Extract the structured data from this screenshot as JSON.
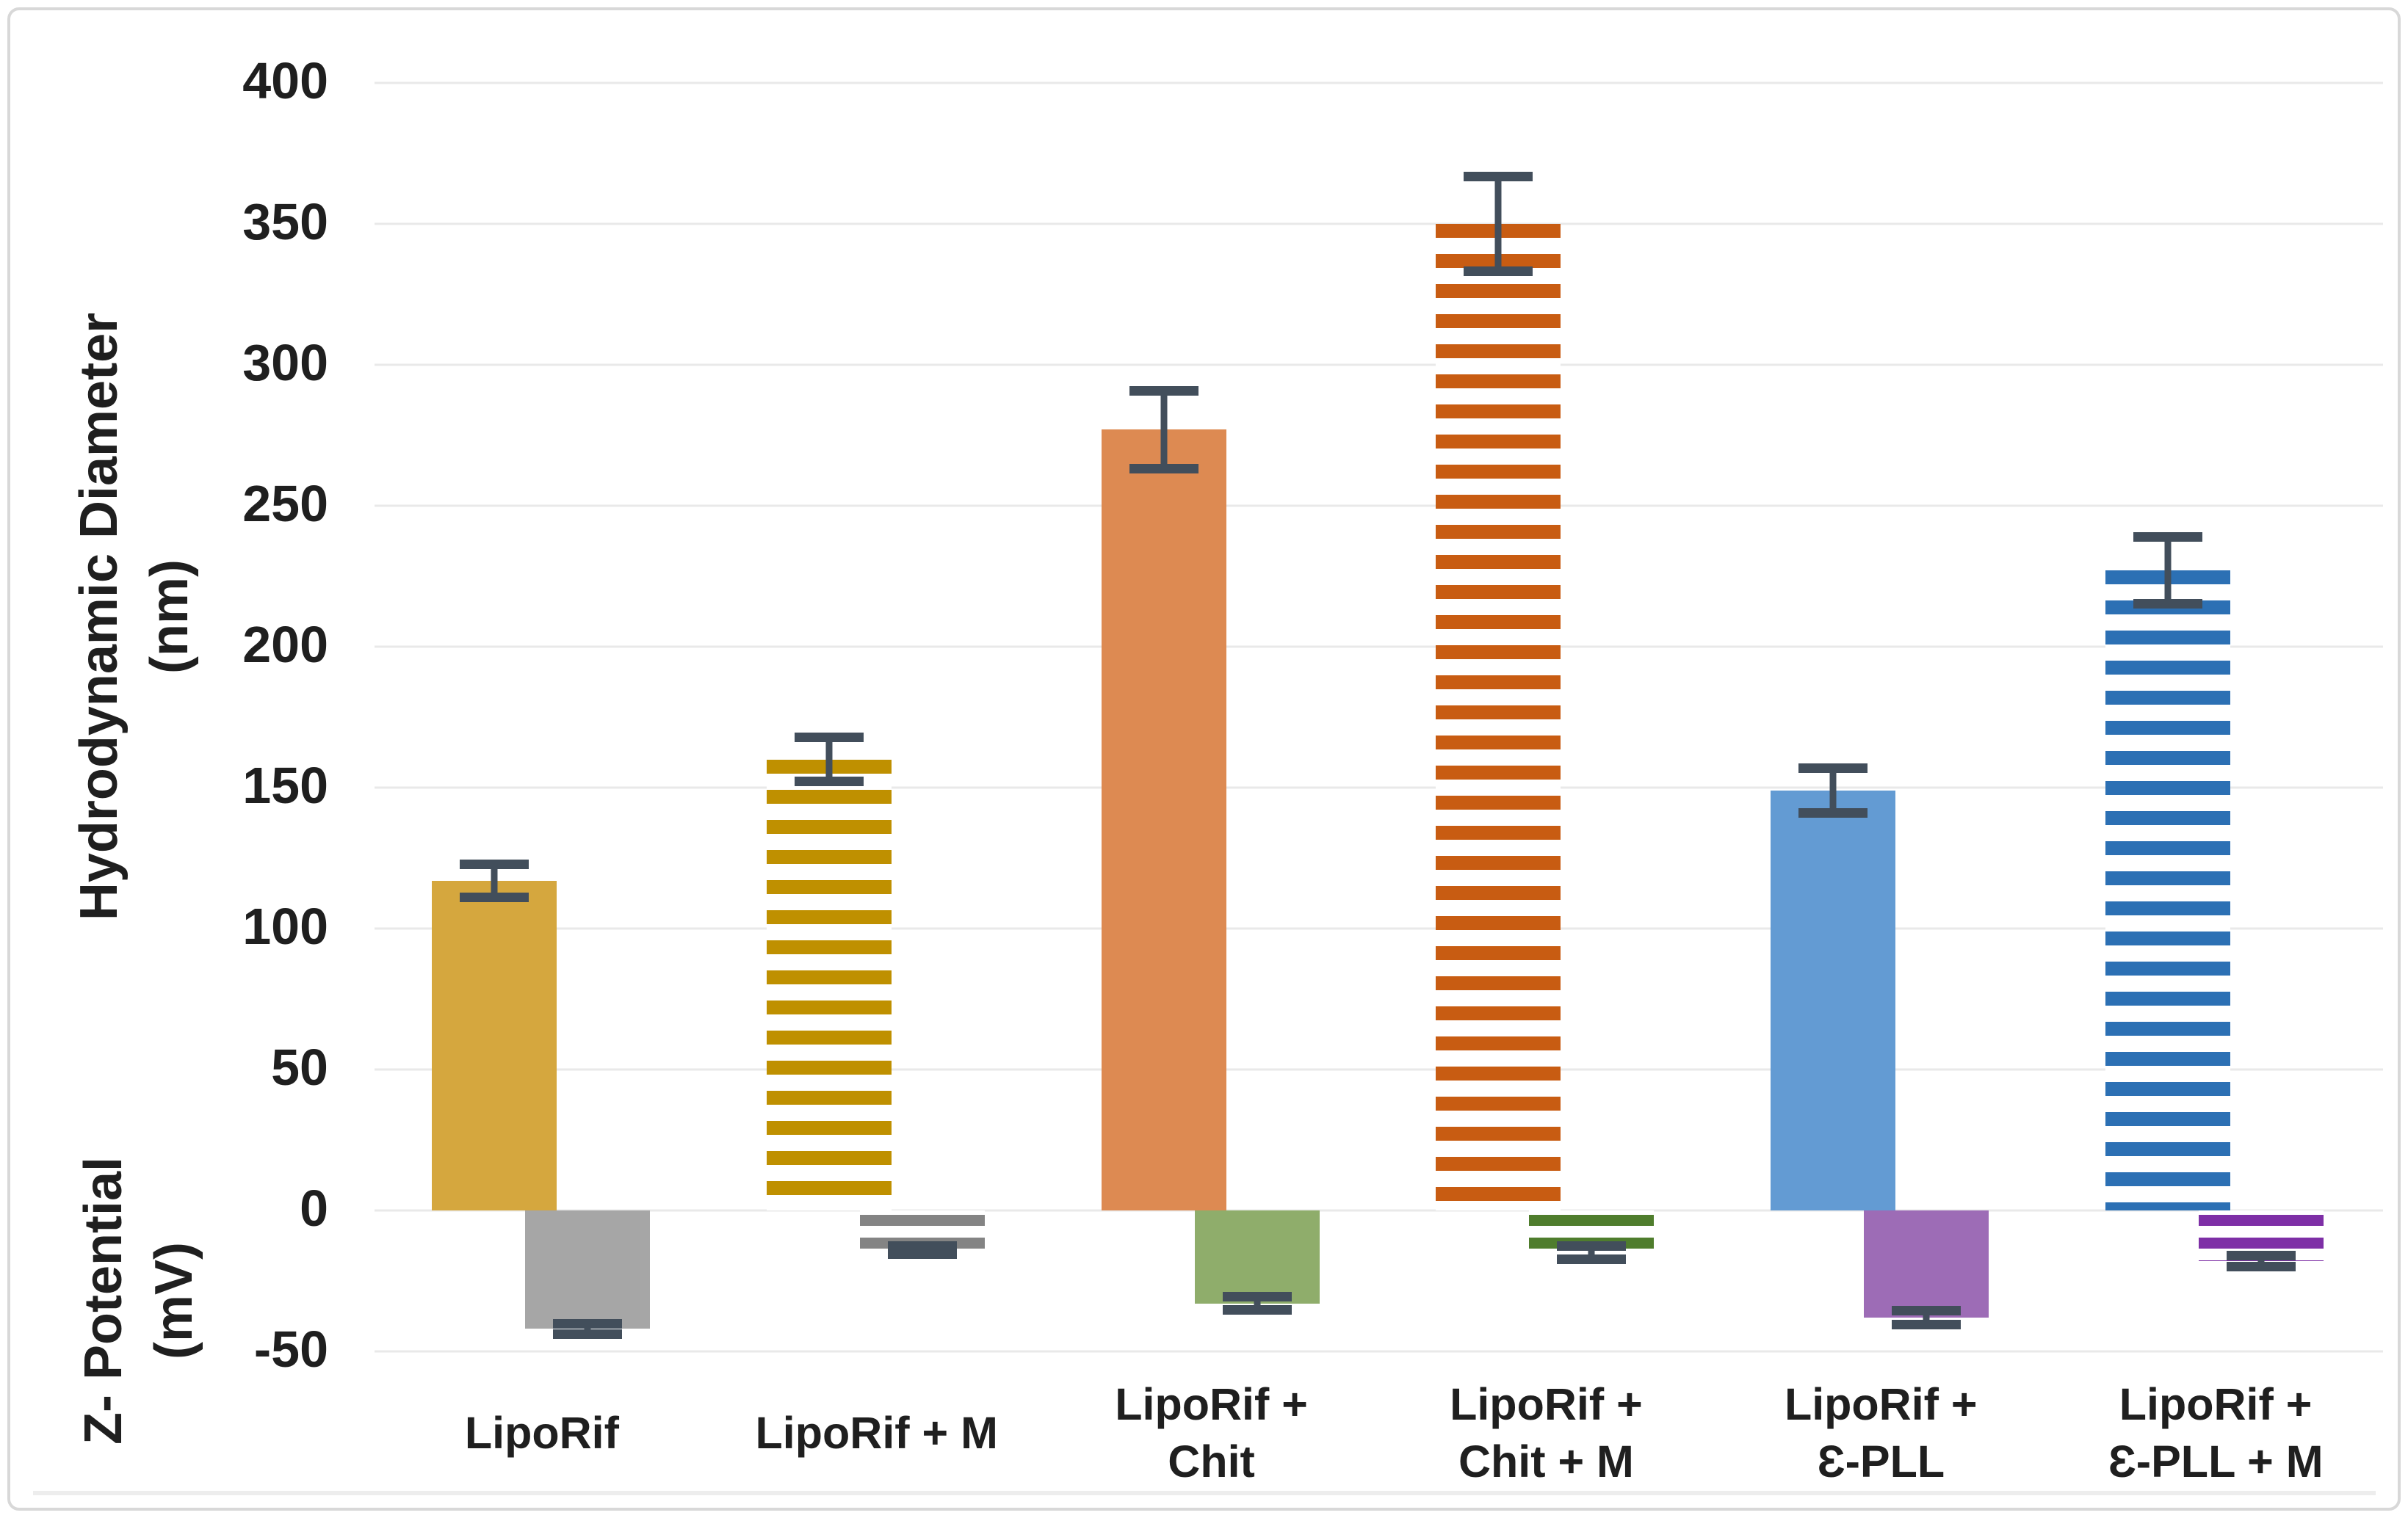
{
  "chart_data": {
    "type": "bar",
    "title": "",
    "categories": [
      "LipoRif",
      "LipoRif + M",
      "LipoRif + Chit",
      "LipoRif + Chit + M",
      "LipoRif + Ɛ-PLL",
      "LipoRif + Ɛ-PLL + M"
    ],
    "category_label_lines": [
      [
        "LipoRif"
      ],
      [
        "LipoRif + M"
      ],
      [
        "LipoRif +",
        "Chit"
      ],
      [
        "LipoRif +",
        "Chit + M"
      ],
      [
        "LipoRif +",
        "Ɛ-PLL"
      ],
      [
        "LipoRif +",
        "Ɛ-PLL + M"
      ]
    ],
    "series": [
      {
        "name": "Hydrodynamic Diameter (nm)",
        "values": [
          117,
          160,
          277,
          350,
          149,
          227
        ],
        "errors": [
          6,
          8,
          14,
          17,
          8,
          12
        ],
        "colors": [
          "#d5a73e",
          "#bf9000",
          "#dd8a52",
          "#c85c12",
          "#639bd3",
          "#2c70b4"
        ],
        "patterns": [
          "solid",
          "striped",
          "solid",
          "striped",
          "solid",
          "striped"
        ]
      },
      {
        "name": "Ζ- Potential (mV)",
        "values": [
          -42,
          -14,
          -33,
          -15,
          -38,
          -18
        ],
        "errors": [
          2,
          1.5,
          2.5,
          2.5,
          2.5,
          2
        ],
        "colors": [
          "#a6a6a6",
          "#848484",
          "#8fad6b",
          "#4f7d2d",
          "#9d6cb6",
          "#7e2fa6"
        ],
        "patterns": [
          "solid",
          "striped",
          "solid",
          "striped",
          "solid",
          "striped"
        ]
      }
    ],
    "ylabel_top_lines": [
      "Hydrodynamic Diameter",
      "(nm)"
    ],
    "ylabel_bottom_lines": [
      "Ζ- Potential",
      "(mV)"
    ],
    "yticks": [
      400,
      350,
      300,
      250,
      200,
      150,
      100,
      50,
      0,
      -50
    ],
    "ytick_labels": [
      "400",
      "350",
      "300",
      "250",
      "200",
      "150",
      "100",
      "50",
      "0",
      "-50"
    ],
    "ylim": [
      -50,
      400
    ],
    "xlabel": "",
    "grid": "horizontal",
    "legend": "none"
  },
  "style": {
    "error_bar_color": "#424e5b",
    "gridline_color": "#e9e9e9",
    "border_color": "#d8d8d8",
    "text_color": "#1f1f1f",
    "background_color": "#ffffff"
  }
}
